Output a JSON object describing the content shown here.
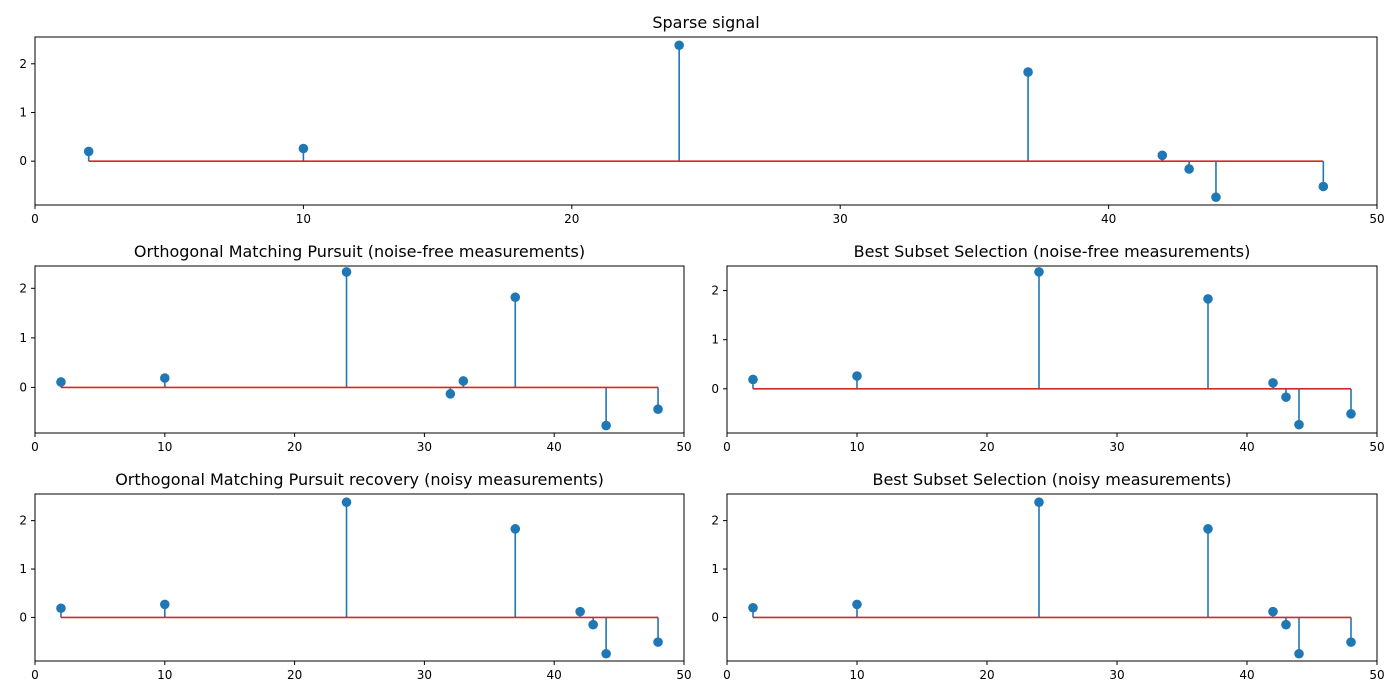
{
  "chart_data": [
    {
      "type": "stem",
      "title": "Sparse signal",
      "xlim": [
        0,
        50
      ],
      "ylim": [
        -0.9,
        2.55
      ],
      "xticks": [
        0,
        10,
        20,
        30,
        40,
        50
      ],
      "yticks": [
        0,
        1,
        2
      ],
      "baseline": {
        "y": 0,
        "x": [
          2,
          48
        ]
      },
      "x": [
        2,
        10,
        24,
        37,
        42,
        43,
        44,
        48
      ],
      "y": [
        0.2,
        0.26,
        2.38,
        1.83,
        0.12,
        -0.16,
        -0.74,
        -0.52
      ]
    },
    {
      "type": "stem",
      "title": "Orthogonal Matching Pursuit (noise-free measurements)",
      "xlim": [
        0,
        50
      ],
      "ylim": [
        -0.92,
        2.45
      ],
      "xticks": [
        0,
        10,
        20,
        30,
        40,
        50
      ],
      "yticks": [
        0,
        1,
        2
      ],
      "baseline": {
        "y": 0,
        "x": [
          2,
          48
        ]
      },
      "x": [
        2,
        10,
        24,
        32,
        33,
        37,
        44,
        48
      ],
      "y": [
        0.11,
        0.19,
        2.33,
        -0.13,
        0.13,
        1.82,
        -0.77,
        -0.44
      ]
    },
    {
      "type": "stem",
      "title": "Best Subset Selection (noise-free measurements)",
      "xlim": [
        0,
        50
      ],
      "ylim": [
        -0.9,
        2.5
      ],
      "xticks": [
        0,
        10,
        20,
        30,
        40,
        50
      ],
      "yticks": [
        0,
        1,
        2
      ],
      "baseline": {
        "y": 0,
        "x": [
          2,
          48
        ]
      },
      "x": [
        2,
        10,
        24,
        37,
        42,
        43,
        44,
        48
      ],
      "y": [
        0.19,
        0.26,
        2.38,
        1.83,
        0.12,
        -0.17,
        -0.73,
        -0.51
      ]
    },
    {
      "type": "stem",
      "title": "Orthogonal Matching Pursuit recovery (noisy measurements)",
      "xlim": [
        0,
        50
      ],
      "ylim": [
        -0.9,
        2.55
      ],
      "xticks": [
        0,
        10,
        20,
        30,
        40,
        50
      ],
      "yticks": [
        0,
        1,
        2
      ],
      "baseline": {
        "y": 0,
        "x": [
          2,
          48
        ]
      },
      "x": [
        2,
        10,
        24,
        37,
        42,
        43,
        44,
        48
      ],
      "y": [
        0.19,
        0.27,
        2.38,
        1.83,
        0.12,
        -0.15,
        -0.75,
        -0.51
      ]
    },
    {
      "type": "stem",
      "title": "Best Subset Selection (noisy measurements)",
      "xlim": [
        0,
        50
      ],
      "ylim": [
        -0.9,
        2.55
      ],
      "xticks": [
        0,
        10,
        20,
        30,
        40,
        50
      ],
      "yticks": [
        0,
        1,
        2
      ],
      "baseline": {
        "y": 0,
        "x": [
          2,
          48
        ]
      },
      "x": [
        2,
        10,
        24,
        37,
        42,
        43,
        44,
        48
      ],
      "y": [
        0.2,
        0.27,
        2.38,
        1.83,
        0.12,
        -0.15,
        -0.75,
        -0.51
      ]
    }
  ],
  "colors": {
    "stem": "#1f77b4",
    "baseline": "#d62728",
    "axis": "#000000",
    "background": "#ffffff"
  }
}
